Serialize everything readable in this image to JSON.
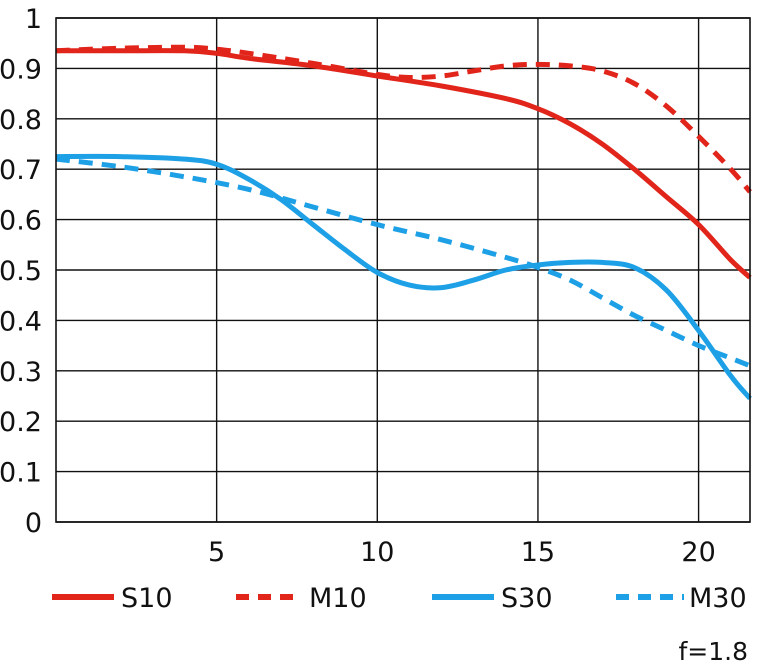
{
  "chart_data": {
    "type": "line",
    "xlim": [
      0,
      21.6
    ],
    "ylim": [
      0,
      1
    ],
    "x_ticks": [
      "5",
      "10",
      "15",
      "20"
    ],
    "y_ticks": [
      "0",
      "0.1",
      "0.2",
      "0.3",
      "0.4",
      "0.5",
      "0.6",
      "0.7",
      "0.8",
      "0.9",
      "1"
    ],
    "grid": true,
    "legend_position": "bottom",
    "note": "f=1.8",
    "series": [
      {
        "name": "S10",
        "color": "#e1251b",
        "dash": "solid",
        "x": [
          0,
          2,
          4,
          5,
          6,
          8,
          10,
          12,
          14,
          15,
          16,
          17,
          18,
          19,
          20,
          21,
          21.6
        ],
        "y": [
          0.935,
          0.935,
          0.935,
          0.93,
          0.92,
          0.905,
          0.885,
          0.865,
          0.84,
          0.82,
          0.79,
          0.75,
          0.7,
          0.645,
          0.59,
          0.52,
          0.485
        ]
      },
      {
        "name": "M10",
        "color": "#e1251b",
        "dash": "dashed",
        "x": [
          0,
          2,
          4,
          5,
          6,
          8,
          10,
          11,
          12,
          13,
          14,
          15,
          16,
          17,
          18,
          19,
          20,
          21,
          21.6
        ],
        "y": [
          0.935,
          0.94,
          0.942,
          0.938,
          0.93,
          0.91,
          0.888,
          0.882,
          0.885,
          0.895,
          0.905,
          0.908,
          0.905,
          0.895,
          0.87,
          0.825,
          0.765,
          0.7,
          0.655
        ]
      },
      {
        "name": "S30",
        "color": "#1ea0e6",
        "dash": "solid",
        "x": [
          0,
          2,
          4,
          5,
          6,
          7,
          8,
          9,
          10,
          11,
          12,
          13,
          14,
          15,
          16,
          17,
          18,
          19,
          20,
          21,
          21.6
        ],
        "y": [
          0.725,
          0.725,
          0.72,
          0.71,
          0.68,
          0.64,
          0.59,
          0.54,
          0.495,
          0.47,
          0.465,
          0.48,
          0.5,
          0.51,
          0.515,
          0.515,
          0.505,
          0.46,
          0.38,
          0.29,
          0.245
        ]
      },
      {
        "name": "M30",
        "color": "#1ea0e6",
        "dash": "dashed",
        "x": [
          0,
          2,
          4,
          6,
          8,
          10,
          12,
          14,
          15,
          16,
          17,
          18,
          19,
          20,
          21,
          21.6
        ],
        "y": [
          0.72,
          0.705,
          0.685,
          0.66,
          0.625,
          0.59,
          0.56,
          0.525,
          0.505,
          0.48,
          0.445,
          0.41,
          0.38,
          0.35,
          0.325,
          0.31
        ]
      }
    ]
  }
}
